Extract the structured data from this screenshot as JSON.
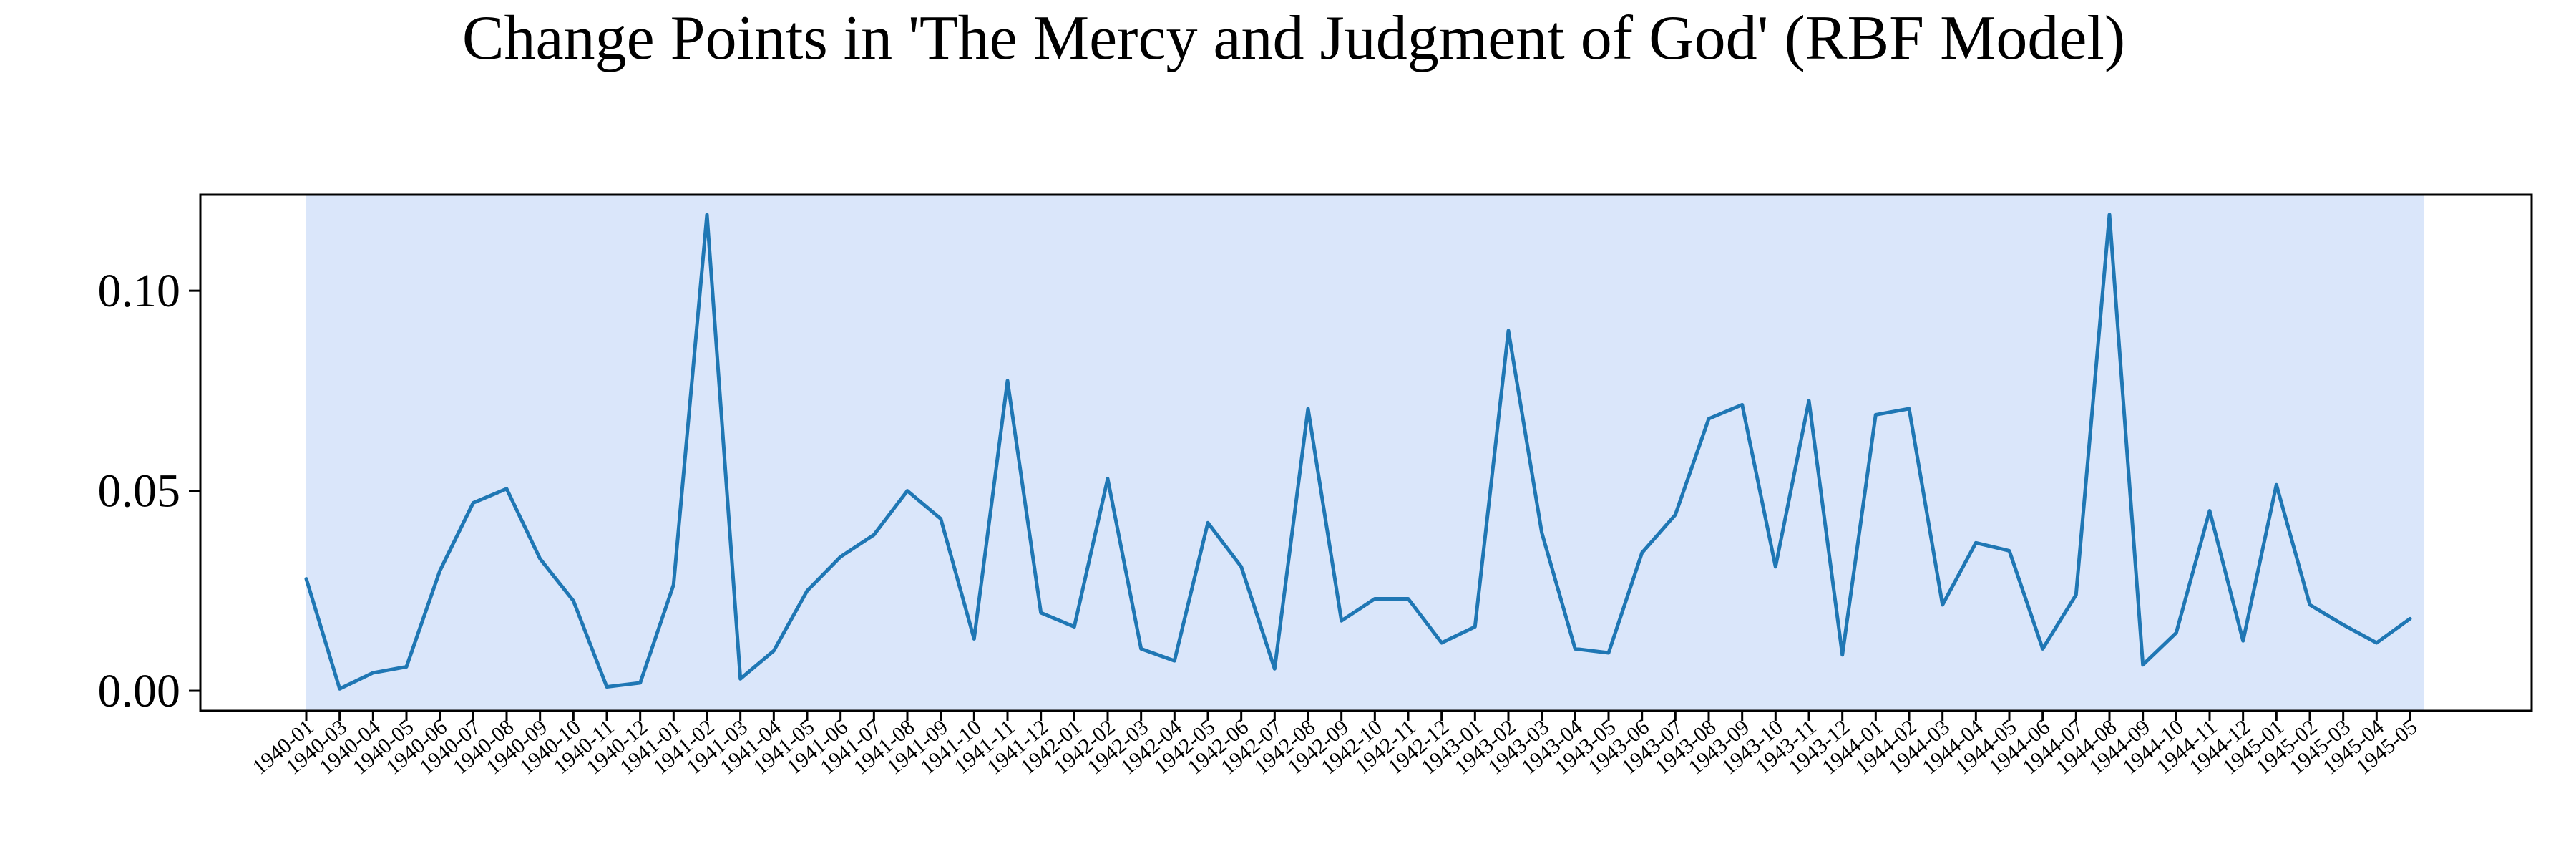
{
  "chart_data": {
    "type": "line",
    "title": "Change Points in 'The Mercy and Judgment of God' (RBF Model)",
    "xlabel": "",
    "ylabel": "",
    "ylim": [
      -0.005,
      0.124
    ],
    "yticks": [
      0.0,
      0.05,
      0.1
    ],
    "ytick_labels": [
      "0.00",
      "0.05",
      "0.10"
    ],
    "grid": false,
    "colors": {
      "line": "#1f77b4",
      "shade": "#dae6fa",
      "axes": "#000000"
    },
    "shaded_region": {
      "from": "1940-01",
      "to": "1945-05"
    },
    "categories": [
      "1940-01",
      "1940-03",
      "1940-04",
      "1940-05",
      "1940-06",
      "1940-07",
      "1940-08",
      "1940-09",
      "1940-10",
      "1940-11",
      "1940-12",
      "1941-01",
      "1941-02",
      "1941-03",
      "1941-04",
      "1941-05",
      "1941-06",
      "1941-07",
      "1941-08",
      "1941-09",
      "1941-10",
      "1941-11",
      "1941-12",
      "1942-01",
      "1942-02",
      "1942-03",
      "1942-04",
      "1942-05",
      "1942-06",
      "1942-07",
      "1942-08",
      "1942-09",
      "1942-10",
      "1942-11",
      "1942-12",
      "1943-01",
      "1943-02",
      "1943-03",
      "1943-04",
      "1943-05",
      "1943-06",
      "1943-07",
      "1943-08",
      "1943-09",
      "1943-10",
      "1943-11",
      "1943-12",
      "1944-01",
      "1944-02",
      "1944-03",
      "1944-04",
      "1944-05",
      "1944-06",
      "1944-07",
      "1944-08",
      "1944-09",
      "1944-10",
      "1944-11",
      "1944-12",
      "1945-01",
      "1945-02",
      "1945-03",
      "1945-04",
      "1945-05"
    ],
    "series": [
      {
        "values": [
          0.028,
          0.0005,
          0.0045,
          0.006,
          0.03,
          0.047,
          0.0505,
          0.033,
          0.0225,
          0.001,
          0.002,
          0.0265,
          0.119,
          0.003,
          0.01,
          0.025,
          0.0335,
          0.039,
          0.05,
          0.043,
          0.013,
          0.0775,
          0.0195,
          0.016,
          0.053,
          0.0105,
          0.0075,
          0.042,
          0.031,
          0.0055,
          0.0705,
          0.0175,
          0.023,
          0.023,
          0.012,
          0.016,
          0.09,
          0.0395,
          0.0105,
          0.0095,
          0.0345,
          0.044,
          0.068,
          0.0715,
          0.031,
          0.0725,
          0.009,
          0.069,
          0.0705,
          0.0215,
          0.037,
          0.035,
          0.0105,
          0.024,
          0.119,
          0.0065,
          0.0145,
          0.045,
          0.0125,
          0.0515,
          0.0215,
          0.0165,
          0.012,
          0.018
        ]
      }
    ]
  }
}
